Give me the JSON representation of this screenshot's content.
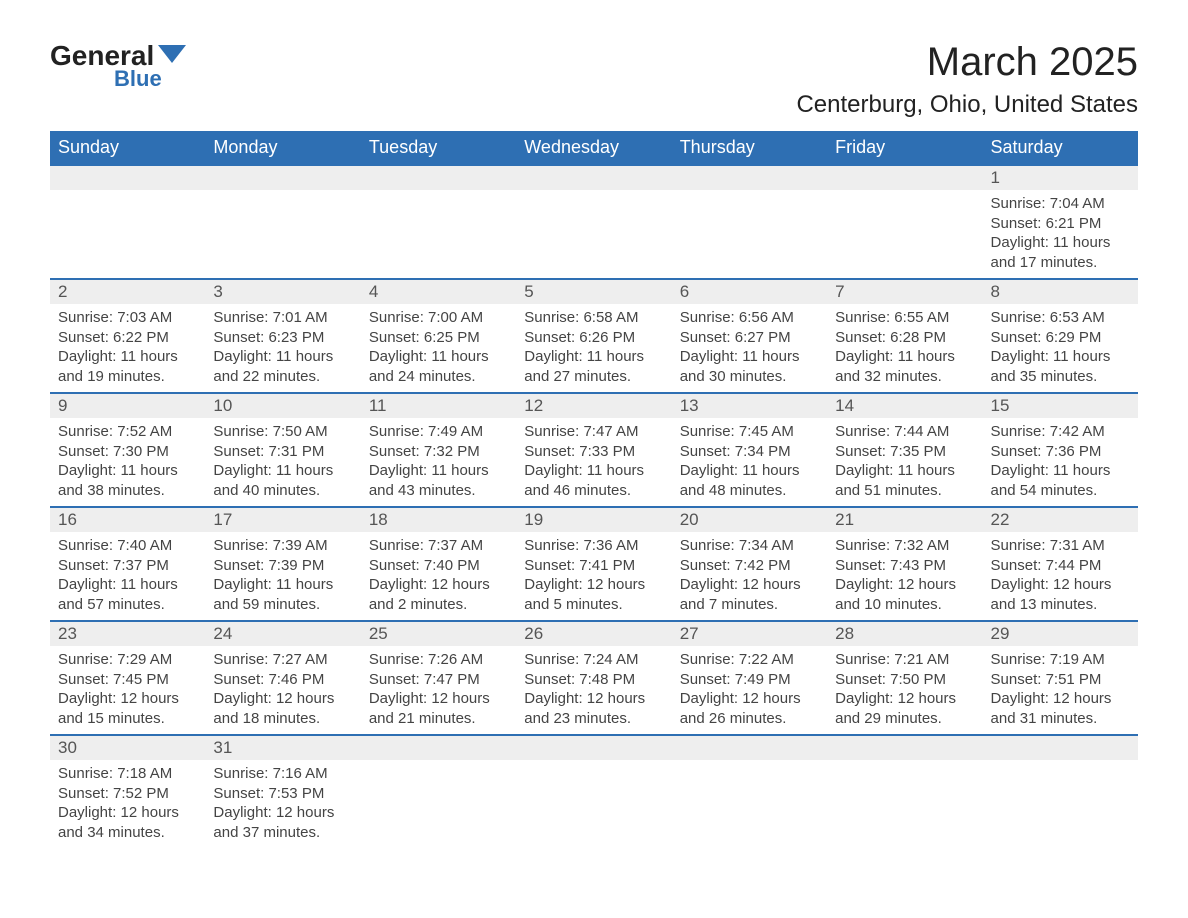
{
  "logo": {
    "general": "General",
    "blue": "Blue",
    "flag_color": "#2e6fb3"
  },
  "title": "March 2025",
  "location": "Centerburg, Ohio, United States",
  "colors": {
    "header_bg": "#2e6fb3",
    "header_text": "#ffffff",
    "daynum_bg": "#eeeeee",
    "daynum_text": "#555555",
    "body_text": "#444444",
    "border": "#2e6fb3",
    "page_bg": "#ffffff"
  },
  "weekdays": [
    "Sunday",
    "Monday",
    "Tuesday",
    "Wednesday",
    "Thursday",
    "Friday",
    "Saturday"
  ],
  "weeks": [
    [
      null,
      null,
      null,
      null,
      null,
      null,
      {
        "n": "1",
        "sr": "7:04 AM",
        "ss": "6:21 PM",
        "dl": "11 hours and 17 minutes."
      }
    ],
    [
      {
        "n": "2",
        "sr": "7:03 AM",
        "ss": "6:22 PM",
        "dl": "11 hours and 19 minutes."
      },
      {
        "n": "3",
        "sr": "7:01 AM",
        "ss": "6:23 PM",
        "dl": "11 hours and 22 minutes."
      },
      {
        "n": "4",
        "sr": "7:00 AM",
        "ss": "6:25 PM",
        "dl": "11 hours and 24 minutes."
      },
      {
        "n": "5",
        "sr": "6:58 AM",
        "ss": "6:26 PM",
        "dl": "11 hours and 27 minutes."
      },
      {
        "n": "6",
        "sr": "6:56 AM",
        "ss": "6:27 PM",
        "dl": "11 hours and 30 minutes."
      },
      {
        "n": "7",
        "sr": "6:55 AM",
        "ss": "6:28 PM",
        "dl": "11 hours and 32 minutes."
      },
      {
        "n": "8",
        "sr": "6:53 AM",
        "ss": "6:29 PM",
        "dl": "11 hours and 35 minutes."
      }
    ],
    [
      {
        "n": "9",
        "sr": "7:52 AM",
        "ss": "7:30 PM",
        "dl": "11 hours and 38 minutes."
      },
      {
        "n": "10",
        "sr": "7:50 AM",
        "ss": "7:31 PM",
        "dl": "11 hours and 40 minutes."
      },
      {
        "n": "11",
        "sr": "7:49 AM",
        "ss": "7:32 PM",
        "dl": "11 hours and 43 minutes."
      },
      {
        "n": "12",
        "sr": "7:47 AM",
        "ss": "7:33 PM",
        "dl": "11 hours and 46 minutes."
      },
      {
        "n": "13",
        "sr": "7:45 AM",
        "ss": "7:34 PM",
        "dl": "11 hours and 48 minutes."
      },
      {
        "n": "14",
        "sr": "7:44 AM",
        "ss": "7:35 PM",
        "dl": "11 hours and 51 minutes."
      },
      {
        "n": "15",
        "sr": "7:42 AM",
        "ss": "7:36 PM",
        "dl": "11 hours and 54 minutes."
      }
    ],
    [
      {
        "n": "16",
        "sr": "7:40 AM",
        "ss": "7:37 PM",
        "dl": "11 hours and 57 minutes."
      },
      {
        "n": "17",
        "sr": "7:39 AM",
        "ss": "7:39 PM",
        "dl": "11 hours and 59 minutes."
      },
      {
        "n": "18",
        "sr": "7:37 AM",
        "ss": "7:40 PM",
        "dl": "12 hours and 2 minutes."
      },
      {
        "n": "19",
        "sr": "7:36 AM",
        "ss": "7:41 PM",
        "dl": "12 hours and 5 minutes."
      },
      {
        "n": "20",
        "sr": "7:34 AM",
        "ss": "7:42 PM",
        "dl": "12 hours and 7 minutes."
      },
      {
        "n": "21",
        "sr": "7:32 AM",
        "ss": "7:43 PM",
        "dl": "12 hours and 10 minutes."
      },
      {
        "n": "22",
        "sr": "7:31 AM",
        "ss": "7:44 PM",
        "dl": "12 hours and 13 minutes."
      }
    ],
    [
      {
        "n": "23",
        "sr": "7:29 AM",
        "ss": "7:45 PM",
        "dl": "12 hours and 15 minutes."
      },
      {
        "n": "24",
        "sr": "7:27 AM",
        "ss": "7:46 PM",
        "dl": "12 hours and 18 minutes."
      },
      {
        "n": "25",
        "sr": "7:26 AM",
        "ss": "7:47 PM",
        "dl": "12 hours and 21 minutes."
      },
      {
        "n": "26",
        "sr": "7:24 AM",
        "ss": "7:48 PM",
        "dl": "12 hours and 23 minutes."
      },
      {
        "n": "27",
        "sr": "7:22 AM",
        "ss": "7:49 PM",
        "dl": "12 hours and 26 minutes."
      },
      {
        "n": "28",
        "sr": "7:21 AM",
        "ss": "7:50 PM",
        "dl": "12 hours and 29 minutes."
      },
      {
        "n": "29",
        "sr": "7:19 AM",
        "ss": "7:51 PM",
        "dl": "12 hours and 31 minutes."
      }
    ],
    [
      {
        "n": "30",
        "sr": "7:18 AM",
        "ss": "7:52 PM",
        "dl": "12 hours and 34 minutes."
      },
      {
        "n": "31",
        "sr": "7:16 AM",
        "ss": "7:53 PM",
        "dl": "12 hours and 37 minutes."
      },
      null,
      null,
      null,
      null,
      null
    ]
  ],
  "labels": {
    "sunrise": "Sunrise: ",
    "sunset": "Sunset: ",
    "daylight": "Daylight: "
  }
}
